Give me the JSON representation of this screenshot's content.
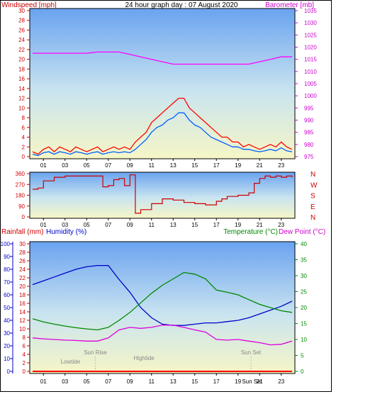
{
  "chart_data": [
    {
      "type": "line",
      "title": "24 hour graph day : 07 August 2020",
      "left_axis_label": "Windspeed [mph]",
      "right_axis_label": "Barometer [mb]",
      "left_ylim": [
        0,
        30
      ],
      "left_ticks": [
        "0",
        "2",
        "4",
        "6",
        "8",
        "10",
        "12",
        "14",
        "16",
        "18",
        "20",
        "22",
        "24",
        "26",
        "28",
        "30"
      ],
      "right_ylim": [
        975,
        1035
      ],
      "right_ticks": [
        "975",
        "980",
        "985",
        "990",
        "995",
        "1000",
        "1005",
        "1010",
        "1015",
        "1020",
        "1025",
        "1030",
        "1035"
      ],
      "x_ticks": [
        "01",
        "03",
        "05",
        "07",
        "09",
        "11",
        "13",
        "15",
        "17",
        "19",
        "21",
        "23"
      ],
      "series": [
        {
          "color": "#ff0000",
          "axis": "left",
          "x": [
            0,
            0.5,
            1,
            1.5,
            2,
            2.5,
            3,
            3.5,
            4,
            4.5,
            5,
            5.5,
            6,
            6.5,
            7,
            7.5,
            8,
            8.5,
            9,
            9.5,
            10,
            10.5,
            11,
            11.5,
            12,
            12.5,
            13,
            13.5,
            14,
            14.5,
            15,
            15.5,
            16,
            16.5,
            17,
            17.5,
            18,
            18.5,
            19,
            19.5,
            20,
            20.5,
            21,
            21.5,
            22,
            22.5,
            23,
            23.5,
            24
          ],
          "values": [
            1,
            0.5,
            1.5,
            2,
            1,
            2,
            1.5,
            1,
            2,
            1.5,
            1,
            1.5,
            2,
            1,
            1.5,
            2,
            1.5,
            2,
            1.5,
            3,
            4,
            5,
            7,
            8,
            9,
            10,
            11,
            12,
            12,
            10,
            9,
            8,
            7,
            6,
            5,
            4,
            4,
            3,
            3,
            2,
            2.5,
            2,
            1.5,
            2,
            2.5,
            2,
            3,
            2,
            1.5
          ]
        },
        {
          "color": "#0060ff",
          "axis": "left",
          "x": [
            0,
            0.5,
            1,
            1.5,
            2,
            2.5,
            3,
            3.5,
            4,
            4.5,
            5,
            5.5,
            6,
            6.5,
            7,
            7.5,
            8,
            8.5,
            9,
            9.5,
            10,
            10.5,
            11,
            11.5,
            12,
            12.5,
            13,
            13.5,
            14,
            14.5,
            15,
            15.5,
            16,
            16.5,
            17,
            17.5,
            18,
            18.5,
            19,
            19.5,
            20,
            20.5,
            21,
            21.5,
            22,
            22.5,
            23,
            23.5,
            24
          ],
          "values": [
            0.5,
            0.2,
            0.8,
            1,
            0.5,
            1,
            0.8,
            0.5,
            1,
            0.8,
            0.5,
            0.8,
            1,
            0.5,
            0.8,
            1,
            0.8,
            1,
            0.8,
            1.5,
            2.5,
            3.5,
            5,
            6,
            6.5,
            7.5,
            8,
            9,
            9,
            7.5,
            6.5,
            6,
            5,
            4,
            3.5,
            3,
            2.5,
            2,
            2,
            1.5,
            1.5,
            1.2,
            1,
            1.2,
            1.5,
            1.2,
            1.8,
            1.2,
            1
          ]
        },
        {
          "color": "#ff00ff",
          "axis": "right",
          "x": [
            0,
            1,
            2,
            3,
            4,
            5,
            6,
            7,
            8,
            9,
            10,
            11,
            12,
            13,
            14,
            15,
            16,
            17,
            18,
            19,
            20,
            21,
            22,
            23,
            24
          ],
          "values": [
            1017.5,
            1017.5,
            1017.5,
            1017.5,
            1017.5,
            1017.5,
            1018,
            1018,
            1018,
            1017,
            1016,
            1015,
            1014,
            1013,
            1013,
            1013,
            1013,
            1013,
            1013,
            1013,
            1013,
            1014,
            1015,
            1016,
            1016
          ]
        }
      ]
    },
    {
      "type": "line",
      "left_ylim": [
        0,
        360
      ],
      "left_ticks": [
        "0",
        "90",
        "180",
        "270",
        "360"
      ],
      "right_labels": [
        "N",
        "W",
        "S",
        "E",
        "N"
      ],
      "x_ticks": [
        "01",
        "03",
        "05",
        "07",
        "09",
        "11",
        "13",
        "15",
        "17",
        "19",
        "21",
        "23"
      ],
      "series": [
        {
          "color": "#cc0000",
          "x": [
            0,
            0.5,
            1,
            2,
            3,
            4,
            5,
            6,
            6.5,
            7,
            7.5,
            8,
            8.5,
            9,
            9.5,
            10,
            11,
            12,
            13,
            14,
            15,
            16,
            17,
            17.5,
            18,
            19,
            20,
            20.5,
            21,
            21.5,
            22,
            22.5,
            23,
            23.5,
            24
          ],
          "values": [
            230,
            240,
            300,
            330,
            340,
            340,
            340,
            340,
            250,
            260,
            310,
            320,
            260,
            350,
            30,
            60,
            110,
            150,
            140,
            120,
            110,
            100,
            130,
            150,
            170,
            180,
            200,
            280,
            320,
            340,
            330,
            340,
            330,
            340,
            330
          ]
        }
      ]
    },
    {
      "type": "line",
      "left_axis_label": "Rainfall (mm)",
      "left_axis_label_2": "Humidity (%)",
      "right_axis_label": "Temperature (°C)",
      "right_axis_label_2": "Dew Point (°C)",
      "humidity_ylim": [
        0,
        100
      ],
      "humidity_ticks": [
        "0",
        "10",
        "20",
        "30",
        "40",
        "50",
        "60",
        "70",
        "80",
        "90",
        "100"
      ],
      "rain_ylim": [
        0,
        30
      ],
      "rain_ticks": [
        "0",
        "2",
        "4",
        "6",
        "8",
        "10",
        "12",
        "14",
        "16",
        "18",
        "20",
        "22",
        "24",
        "26",
        "28",
        "30"
      ],
      "temp_ylim": [
        0,
        40
      ],
      "temp_ticks": [
        "0",
        "5",
        "10",
        "15",
        "20",
        "25",
        "30",
        "35",
        "40"
      ],
      "x_ticks": [
        "01",
        "03",
        "05",
        "07",
        "09",
        "11",
        "13",
        "15",
        "17",
        "19",
        "21",
        "23"
      ],
      "annotations": [
        "Lowtide",
        "Sun Rise",
        "Hightide",
        "Sun Set",
        "Sun Set"
      ],
      "series": [
        {
          "color": "#0000cc",
          "axis": "humidity",
          "x": [
            0,
            1,
            2,
            3,
            4,
            5,
            6,
            7,
            8,
            9,
            10,
            11,
            12,
            13,
            14,
            15,
            16,
            17,
            18,
            19,
            20,
            21,
            22,
            23,
            24
          ],
          "values": [
            68,
            71,
            74,
            77,
            80,
            82,
            83,
            83,
            72,
            62,
            50,
            42,
            37,
            36,
            36,
            37,
            38,
            38,
            39,
            40,
            42,
            45,
            48,
            51,
            55
          ]
        },
        {
          "color": "#008800",
          "axis": "temp",
          "x": [
            0,
            1,
            2,
            3,
            4,
            5,
            6,
            7,
            8,
            9,
            10,
            11,
            12,
            13,
            14,
            15,
            16,
            17,
            18,
            19,
            20,
            21,
            22,
            23,
            24
          ],
          "values": [
            16.5,
            15.5,
            14.8,
            14.2,
            13.7,
            13.3,
            13.0,
            13.8,
            16.0,
            18.5,
            21.5,
            24.5,
            27.0,
            29.0,
            31.0,
            30.5,
            29.0,
            25.5,
            24.8,
            24.0,
            22.5,
            21.0,
            20.0,
            19.0,
            18.5
          ]
        },
        {
          "color": "#dd00dd",
          "axis": "temp",
          "x": [
            0,
            1,
            2,
            3,
            4,
            5,
            6,
            7,
            8,
            9,
            10,
            11,
            12,
            13,
            14,
            15,
            16,
            17,
            18,
            19,
            20,
            21,
            22,
            23,
            24
          ],
          "values": [
            10.5,
            10.2,
            10.0,
            9.8,
            9.7,
            9.5,
            9.5,
            10.5,
            13.0,
            13.8,
            13.5,
            13.8,
            14.5,
            14.5,
            13.8,
            13.0,
            12.3,
            10.0,
            9.8,
            10.0,
            9.5,
            9.0,
            8.3,
            8.5,
            9.5
          ]
        },
        {
          "color": "#ff0000",
          "axis": "rain",
          "x": [
            0,
            24
          ],
          "values": [
            0,
            0
          ]
        }
      ]
    }
  ]
}
